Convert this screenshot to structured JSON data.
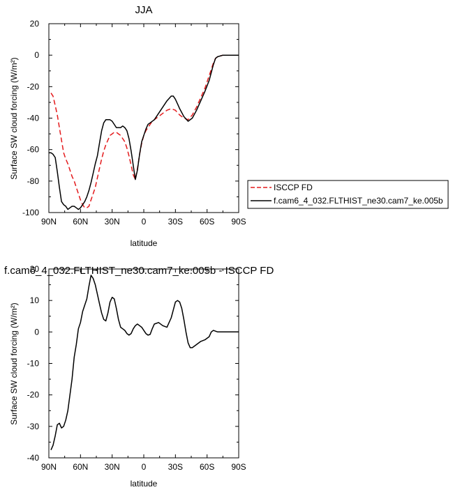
{
  "chart_data": [
    {
      "type": "line",
      "title": "JJA",
      "xlabel": "latitude",
      "ylabel": "Surface SW cloud forcing (W/m²)",
      "xlim": [
        90,
        -90
      ],
      "ylim": [
        -100,
        20
      ],
      "x_ticks": [
        90,
        60,
        30,
        0,
        -30,
        -60,
        -90
      ],
      "x_tick_labels": [
        "90N",
        "60N",
        "30N",
        "0",
        "30S",
        "60S",
        "90S"
      ],
      "y_ticks": [
        -100,
        -80,
        -60,
        -40,
        -20,
        0,
        20
      ],
      "y_tick_labels": [
        "-100",
        "-80",
        "-60",
        "-40",
        "-20",
        "0",
        "20"
      ],
      "legend": {
        "position": "right"
      },
      "series": [
        {
          "name": "ISCCP FD",
          "color": "#e41a1c",
          "dash": true,
          "x": [
            88,
            86,
            84,
            82,
            80,
            78,
            76,
            74,
            72,
            70,
            68,
            66,
            64,
            62,
            60,
            58,
            56,
            54,
            52,
            50,
            48,
            46,
            44,
            42,
            40,
            38,
            36,
            34,
            32,
            30,
            28,
            26,
            24,
            22,
            20,
            18,
            16,
            14,
            12,
            10,
            8,
            6,
            4,
            2,
            0,
            -2,
            -4,
            -6,
            -8,
            -10,
            -14,
            -18,
            -22,
            -26,
            -30,
            -34,
            -38,
            -42,
            -46,
            -50,
            -54,
            -58,
            -62,
            -64,
            -66,
            -68,
            -70,
            -75,
            -80,
            -85,
            -90
          ],
          "y": [
            -24,
            -26,
            -32,
            -38,
            -46,
            -54,
            -62,
            -66,
            -69,
            -73,
            -77,
            -80,
            -84,
            -88,
            -92,
            -95,
            -97,
            -97,
            -96,
            -92,
            -88,
            -84,
            -78,
            -72,
            -66,
            -61,
            -57,
            -54,
            -51,
            -50,
            -49,
            -49,
            -50,
            -51,
            -53,
            -55,
            -59,
            -64,
            -70,
            -76,
            -79,
            -72,
            -63,
            -56,
            -51,
            -48,
            -46,
            -44,
            -42,
            -41,
            -39,
            -37,
            -35,
            -34,
            -35,
            -38,
            -40,
            -41,
            -38,
            -33,
            -27,
            -21,
            -13,
            -9,
            -5,
            -2,
            -1,
            0,
            0,
            0,
            0
          ]
        },
        {
          "name": "f.cam6_4_032.FLTHIST_ne30.cam7_ke.005b",
          "color": "#000000",
          "dash": false,
          "x": [
            90,
            88,
            86,
            84,
            82,
            80,
            78,
            76,
            74,
            72,
            70,
            68,
            66,
            64,
            62,
            60,
            58,
            56,
            54,
            52,
            50,
            48,
            46,
            44,
            42,
            40,
            38,
            36,
            34,
            32,
            30,
            28,
            26,
            24,
            22,
            20,
            18,
            16,
            14,
            12,
            10,
            8,
            6,
            4,
            2,
            0,
            -2,
            -4,
            -6,
            -10,
            -14,
            -18,
            -22,
            -26,
            -28,
            -30,
            -32,
            -34,
            -38,
            -42,
            -46,
            -50,
            -54,
            -58,
            -62,
            -64,
            -66,
            -68,
            -70,
            -75,
            -80,
            -85,
            -90
          ],
          "y": [
            -62,
            -62,
            -63,
            -65,
            -74,
            -84,
            -93,
            -95,
            -96,
            -98,
            -97,
            -96,
            -96,
            -97,
            -98,
            -97,
            -95,
            -93,
            -90,
            -86,
            -81,
            -75,
            -69,
            -64,
            -56,
            -48,
            -43,
            -41,
            -41,
            -41,
            -42,
            -44,
            -46,
            -46,
            -46,
            -45,
            -46,
            -48,
            -53,
            -61,
            -70,
            -79,
            -73,
            -63,
            -55,
            -51,
            -47,
            -44,
            -43,
            -41,
            -37,
            -33,
            -29,
            -26,
            -26,
            -28,
            -31,
            -34,
            -39,
            -42,
            -40,
            -35,
            -29,
            -23,
            -16,
            -11,
            -6,
            -2,
            -1,
            0,
            0,
            0,
            0
          ]
        }
      ]
    },
    {
      "type": "line",
      "title": "f.cam6_4_032.FLTHIST_ne30.cam7_ke.005b - ISCCP FD",
      "xlabel": "latitude",
      "ylabel": "Surface SW cloud forcing (W/m²)",
      "xlim": [
        90,
        -90
      ],
      "ylim": [
        -40,
        20
      ],
      "x_ticks": [
        90,
        60,
        30,
        0,
        -30,
        -60,
        -90
      ],
      "x_tick_labels": [
        "90N",
        "60N",
        "30N",
        "0",
        "30S",
        "60S",
        "90S"
      ],
      "y_ticks": [
        -40,
        -30,
        -20,
        -10,
        0,
        10,
        20
      ],
      "y_tick_labels": [
        "-40",
        "-30",
        "-20",
        "-10",
        "0",
        "10",
        "20"
      ],
      "series": [
        {
          "color": "#000000",
          "dash": false,
          "x": [
            88,
            86,
            84,
            82,
            80,
            78,
            76,
            74,
            72,
            70,
            68,
            66,
            64,
            62,
            60,
            58,
            56,
            54,
            52,
            50,
            48,
            46,
            44,
            42,
            40,
            38,
            36,
            34,
            32,
            30,
            28,
            26,
            24,
            22,
            20,
            18,
            16,
            14,
            12,
            10,
            8,
            6,
            4,
            2,
            0,
            -2,
            -4,
            -6,
            -8,
            -10,
            -14,
            -18,
            -22,
            -26,
            -28,
            -30,
            -32,
            -34,
            -36,
            -38,
            -40,
            -42,
            -44,
            -46,
            -50,
            -54,
            -58,
            -62,
            -64,
            -66,
            -70,
            -75,
            -80,
            -90
          ],
          "y": [
            -37.5,
            -36,
            -33,
            -29.5,
            -29,
            -30.5,
            -30,
            -28,
            -25,
            -20,
            -15,
            -8,
            -4,
            1,
            3,
            6.5,
            8.5,
            10.5,
            14.5,
            18,
            17,
            15,
            12,
            9,
            6,
            4,
            3.5,
            6,
            9.5,
            11,
            10.5,
            7.5,
            4,
            1.5,
            1,
            0.5,
            -0.5,
            -1,
            -0.5,
            1,
            2,
            2.5,
            2,
            1.5,
            0.5,
            -0.5,
            -1,
            -0.8,
            1,
            2.5,
            3,
            2,
            1.5,
            4.5,
            7,
            9.5,
            10,
            9.5,
            7.5,
            4,
            0,
            -3.5,
            -5,
            -5,
            -4,
            -3,
            -2.5,
            -1.5,
            0,
            0.5,
            0,
            0,
            0,
            0
          ]
        }
      ]
    }
  ]
}
